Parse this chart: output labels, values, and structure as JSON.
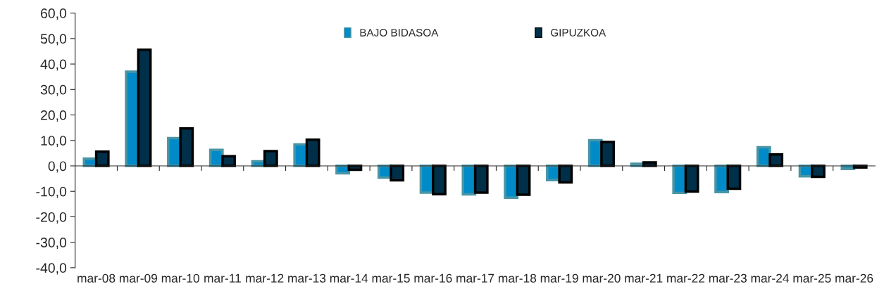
{
  "chart_data": {
    "type": "bar",
    "categories": [
      "mar-08",
      "mar-09",
      "mar-10",
      "mar-11",
      "mar-12",
      "mar-13",
      "mar-14",
      "mar-15",
      "mar-16",
      "mar-17",
      "mar-18",
      "mar-19",
      "mar-20",
      "mar-21",
      "mar-22",
      "mar-23",
      "mar-24",
      "mar-25",
      "mar-26"
    ],
    "series": [
      {
        "name": "BAJO BIDASOA",
        "color": "#008bc8",
        "values": [
          2.8,
          37.0,
          10.9,
          6.3,
          1.8,
          8.4,
          -2.9,
          -4.6,
          -10.5,
          -11.2,
          -12.5,
          -5.6,
          10.1,
          0.8,
          -10.6,
          -10.3,
          7.3,
          -4.1,
          -1.2
        ]
      },
      {
        "name": "GIPUZKOA",
        "color": "#003049",
        "values": [
          5.6,
          45.6,
          14.7,
          3.8,
          5.8,
          10.3,
          -1.5,
          -5.7,
          -11.1,
          -10.5,
          -11.3,
          -6.5,
          9.4,
          1.4,
          -10.1,
          -9.0,
          4.5,
          -4.3,
          -0.6
        ]
      }
    ],
    "ylim": [
      -40,
      60
    ],
    "yticks": [
      {
        "value": -40,
        "label": "-40,0"
      },
      {
        "value": -30,
        "label": "-30,0"
      },
      {
        "value": -20,
        "label": "-20,0"
      },
      {
        "value": -10,
        "label": "-10,0"
      },
      {
        "value": 0,
        "label": "0,0"
      },
      {
        "value": 10,
        "label": "10,0"
      },
      {
        "value": 20,
        "label": "20,0"
      },
      {
        "value": 30,
        "label": "30,0"
      },
      {
        "value": 40,
        "label": "40,0"
      },
      {
        "value": 50,
        "label": "50,0"
      },
      {
        "value": 60,
        "label": "60,0"
      }
    ],
    "legend": "top"
  }
}
